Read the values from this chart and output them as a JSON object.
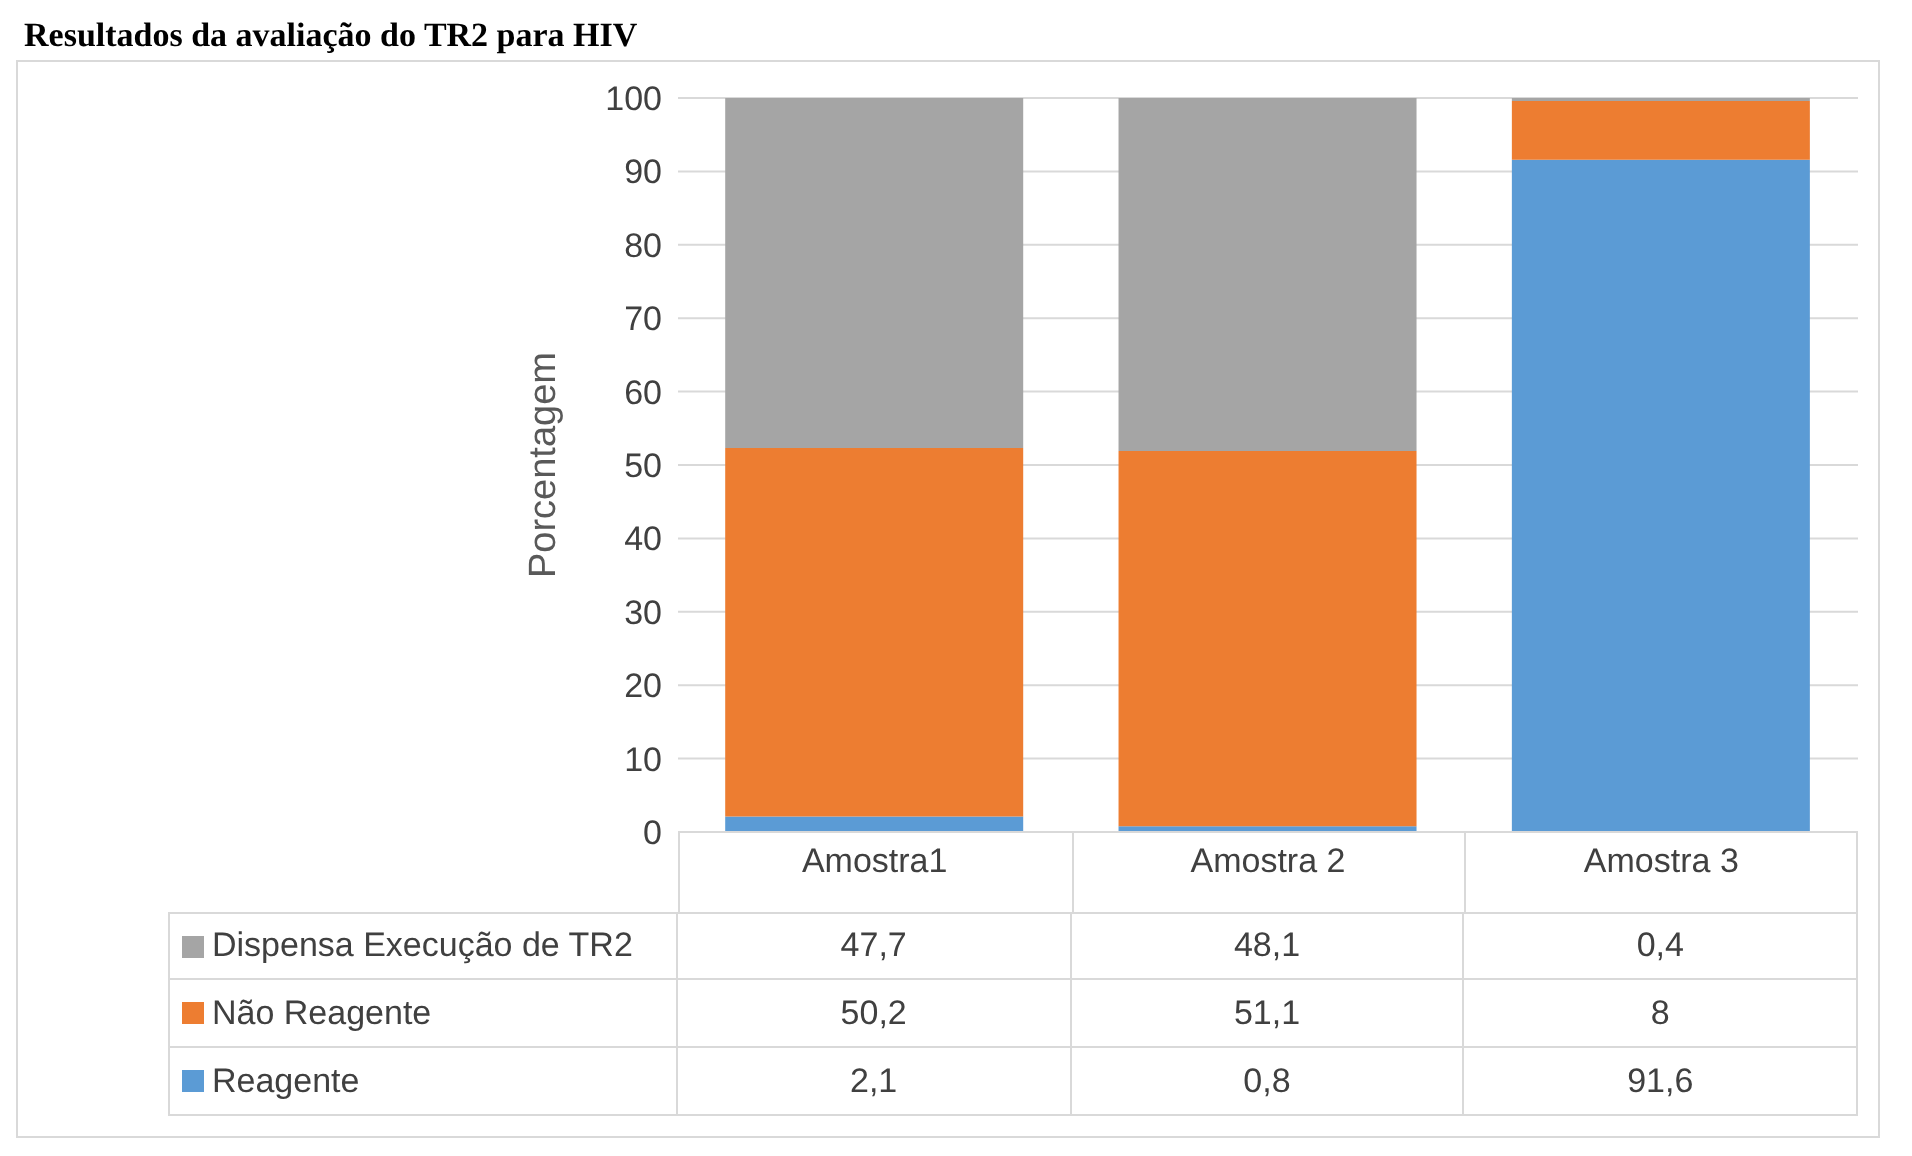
{
  "chart_data": {
    "type": "bar",
    "title": "Resultados da avaliação do TR2 para HIV",
    "ylabel": "Porcentagem",
    "categories": [
      "Amostra1",
      "Amostra 2",
      "Amostra 3"
    ],
    "stacked": true,
    "series": [
      {
        "name": "Reagente",
        "color": "#5b9bd5",
        "values": [
          2.1,
          0.8,
          91.6
        ],
        "value_labels": [
          "2,1",
          "0,8",
          "91,6"
        ]
      },
      {
        "name": "Não Reagente",
        "color": "#ed7d31",
        "values": [
          50.2,
          51.1,
          8
        ],
        "value_labels": [
          "50,2",
          "51,1",
          "8"
        ]
      },
      {
        "name": "Dispensa Execução de TR2",
        "color": "#a5a5a5",
        "values": [
          47.7,
          48.1,
          0.4
        ],
        "value_labels": [
          "47,7",
          "48,1",
          "0,4"
        ]
      }
    ],
    "ylim": [
      0,
      100
    ],
    "yticks": [
      0,
      10,
      20,
      30,
      40,
      50,
      60,
      70,
      80,
      90,
      100
    ],
    "grid": "y",
    "legend": "bottom"
  }
}
